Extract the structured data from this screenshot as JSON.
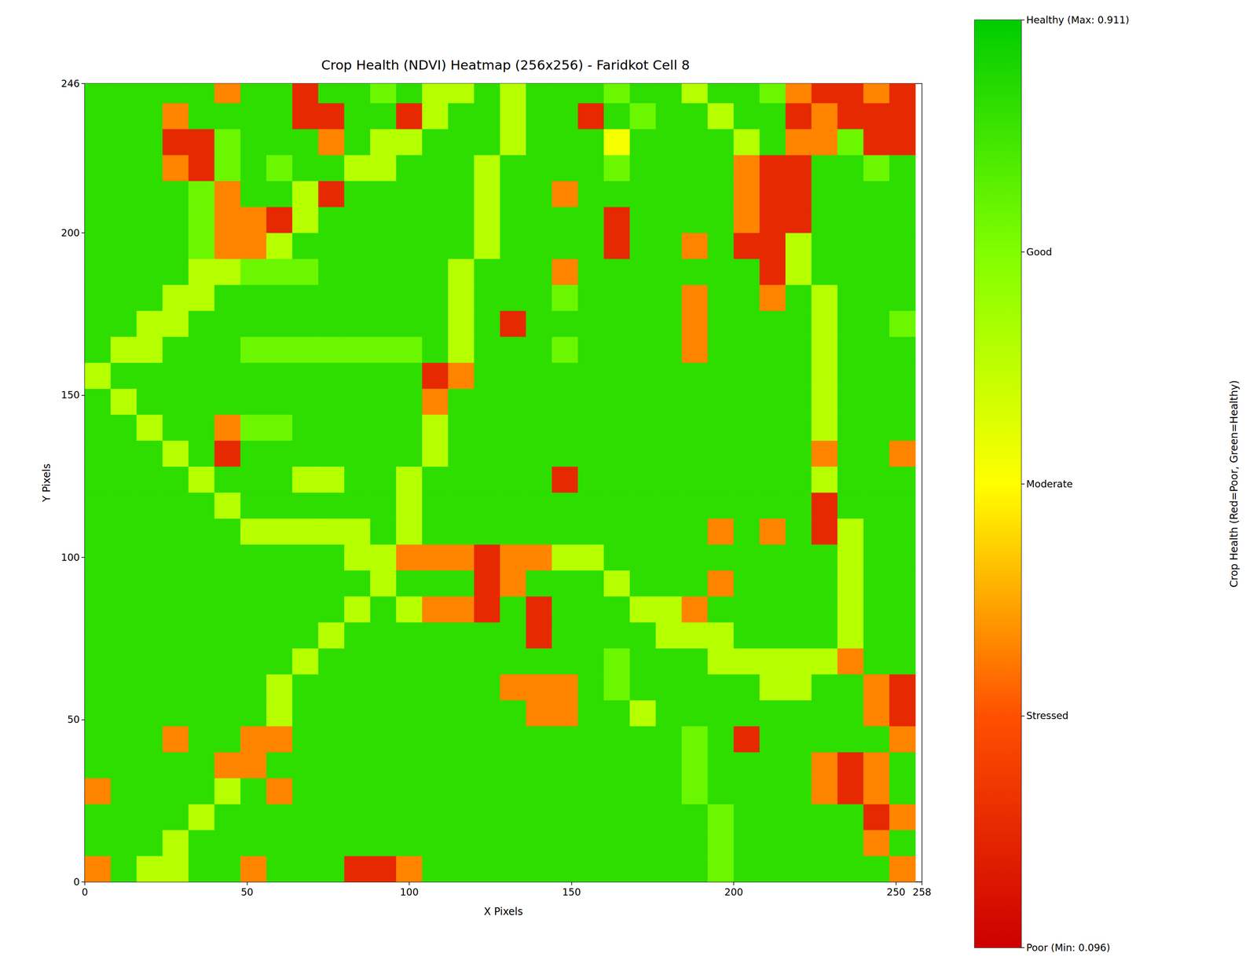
{
  "chart_data": {
    "type": "heatmap",
    "title": "Crop Health (NDVI) Heatmap (256x256) - Faridkot Cell 8",
    "x_label": "X Pixels",
    "y_label": "Y Pixels",
    "xlim": [
      0,
      258
    ],
    "ylim": [
      0,
      246
    ],
    "xticks": [
      0,
      50,
      100,
      150,
      200,
      250
    ],
    "yticks": [
      0,
      50,
      100,
      150,
      200
    ],
    "grid": false,
    "x": [
      4,
      12,
      20,
      28,
      36,
      44,
      52,
      60,
      68,
      76,
      84,
      92,
      100,
      108,
      116,
      124,
      132,
      140,
      148,
      156,
      164,
      172,
      180,
      188,
      196,
      204,
      212,
      220,
      228,
      236,
      244,
      252
    ],
    "y": [
      4,
      12,
      20,
      28,
      36,
      44,
      52,
      60,
      68,
      76,
      84,
      92,
      100,
      108,
      116,
      124,
      132,
      140,
      148,
      156,
      164,
      172,
      180,
      188,
      196,
      204,
      212,
      220,
      228,
      236,
      244
    ],
    "z": [
      [
        0.36,
        0.84,
        0.62,
        0.62,
        0.84,
        0.84,
        0.36,
        0.84,
        0.84,
        0.84,
        0.2,
        0.2,
        0.36,
        0.84,
        0.84,
        0.84,
        0.84,
        0.84,
        0.84,
        0.84,
        0.84,
        0.84,
        0.84,
        0.84,
        0.74,
        0.84,
        0.84,
        0.84,
        0.84,
        0.84,
        0.84,
        0.36
      ],
      [
        0.84,
        0.84,
        0.84,
        0.62,
        0.84,
        0.84,
        0.84,
        0.84,
        0.84,
        0.84,
        0.84,
        0.84,
        0.84,
        0.84,
        0.84,
        0.84,
        0.84,
        0.84,
        0.84,
        0.84,
        0.84,
        0.84,
        0.84,
        0.84,
        0.74,
        0.84,
        0.84,
        0.84,
        0.84,
        0.84,
        0.36,
        0.84
      ],
      [
        0.84,
        0.84,
        0.84,
        0.84,
        0.62,
        0.84,
        0.84,
        0.84,
        0.84,
        0.84,
        0.84,
        0.84,
        0.84,
        0.84,
        0.84,
        0.84,
        0.84,
        0.84,
        0.84,
        0.84,
        0.84,
        0.84,
        0.84,
        0.84,
        0.74,
        0.84,
        0.84,
        0.84,
        0.84,
        0.84,
        0.2,
        0.36
      ],
      [
        0.36,
        0.84,
        0.84,
        0.84,
        0.84,
        0.62,
        0.84,
        0.36,
        0.84,
        0.84,
        0.84,
        0.84,
        0.84,
        0.84,
        0.84,
        0.84,
        0.84,
        0.84,
        0.84,
        0.84,
        0.84,
        0.84,
        0.84,
        0.74,
        0.84,
        0.84,
        0.84,
        0.84,
        0.36,
        0.2,
        0.36,
        0.84
      ],
      [
        0.84,
        0.84,
        0.84,
        0.84,
        0.84,
        0.36,
        0.36,
        0.84,
        0.84,
        0.84,
        0.84,
        0.84,
        0.84,
        0.84,
        0.84,
        0.84,
        0.84,
        0.84,
        0.84,
        0.84,
        0.84,
        0.84,
        0.84,
        0.74,
        0.84,
        0.84,
        0.84,
        0.84,
        0.36,
        0.2,
        0.36,
        0.84
      ],
      [
        0.84,
        0.84,
        0.84,
        0.36,
        0.84,
        0.84,
        0.36,
        0.36,
        0.84,
        0.84,
        0.84,
        0.84,
        0.84,
        0.84,
        0.84,
        0.84,
        0.84,
        0.84,
        0.84,
        0.84,
        0.84,
        0.84,
        0.84,
        0.74,
        0.84,
        0.2,
        0.84,
        0.84,
        0.84,
        0.84,
        0.84,
        0.36
      ],
      [
        0.84,
        0.84,
        0.84,
        0.84,
        0.84,
        0.84,
        0.84,
        0.62,
        0.84,
        0.84,
        0.84,
        0.84,
        0.84,
        0.84,
        0.84,
        0.84,
        0.84,
        0.36,
        0.36,
        0.84,
        0.84,
        0.62,
        0.84,
        0.84,
        0.84,
        0.84,
        0.84,
        0.84,
        0.84,
        0.84,
        0.36,
        0.2
      ],
      [
        0.84,
        0.84,
        0.84,
        0.84,
        0.84,
        0.84,
        0.84,
        0.62,
        0.84,
        0.84,
        0.84,
        0.84,
        0.84,
        0.84,
        0.84,
        0.84,
        0.36,
        0.36,
        0.36,
        0.84,
        0.74,
        0.84,
        0.84,
        0.84,
        0.84,
        0.84,
        0.62,
        0.62,
        0.84,
        0.84,
        0.36,
        0.2
      ],
      [
        0.84,
        0.84,
        0.84,
        0.84,
        0.84,
        0.84,
        0.84,
        0.84,
        0.62,
        0.84,
        0.84,
        0.84,
        0.84,
        0.84,
        0.84,
        0.84,
        0.84,
        0.84,
        0.84,
        0.84,
        0.74,
        0.84,
        0.84,
        0.84,
        0.62,
        0.62,
        0.62,
        0.62,
        0.62,
        0.36,
        0.84,
        0.84
      ],
      [
        0.84,
        0.84,
        0.84,
        0.84,
        0.84,
        0.84,
        0.84,
        0.84,
        0.84,
        0.62,
        0.84,
        0.84,
        0.84,
        0.84,
        0.84,
        0.84,
        0.84,
        0.2,
        0.84,
        0.84,
        0.84,
        0.84,
        0.62,
        0.62,
        0.62,
        0.84,
        0.84,
        0.84,
        0.84,
        0.62,
        0.84,
        0.84
      ],
      [
        0.84,
        0.84,
        0.84,
        0.84,
        0.84,
        0.84,
        0.84,
        0.84,
        0.84,
        0.84,
        0.62,
        0.84,
        0.62,
        0.36,
        0.36,
        0.2,
        0.84,
        0.2,
        0.84,
        0.84,
        0.84,
        0.62,
        0.62,
        0.36,
        0.84,
        0.84,
        0.84,
        0.84,
        0.84,
        0.62,
        0.84,
        0.84
      ],
      [
        0.84,
        0.84,
        0.84,
        0.84,
        0.84,
        0.84,
        0.84,
        0.84,
        0.84,
        0.84,
        0.84,
        0.62,
        0.84,
        0.84,
        0.84,
        0.2,
        0.36,
        0.84,
        0.84,
        0.84,
        0.62,
        0.84,
        0.84,
        0.84,
        0.36,
        0.84,
        0.84,
        0.84,
        0.84,
        0.62,
        0.84,
        0.84
      ],
      [
        0.84,
        0.84,
        0.84,
        0.84,
        0.84,
        0.84,
        0.84,
        0.84,
        0.84,
        0.84,
        0.62,
        0.62,
        0.36,
        0.36,
        0.36,
        0.2,
        0.36,
        0.36,
        0.62,
        0.62,
        0.84,
        0.84,
        0.84,
        0.84,
        0.84,
        0.84,
        0.84,
        0.84,
        0.84,
        0.62,
        0.84,
        0.84
      ],
      [
        0.84,
        0.84,
        0.84,
        0.84,
        0.84,
        0.84,
        0.62,
        0.62,
        0.62,
        0.62,
        0.62,
        0.84,
        0.62,
        0.84,
        0.84,
        0.84,
        0.84,
        0.84,
        0.84,
        0.84,
        0.84,
        0.84,
        0.84,
        0.84,
        0.36,
        0.84,
        0.36,
        0.84,
        0.2,
        0.62,
        0.84,
        0.84
      ],
      [
        0.84,
        0.84,
        0.84,
        0.84,
        0.84,
        0.62,
        0.84,
        0.84,
        0.84,
        0.84,
        0.84,
        0.84,
        0.62,
        0.84,
        0.84,
        0.84,
        0.84,
        0.84,
        0.84,
        0.84,
        0.84,
        0.84,
        0.84,
        0.84,
        0.84,
        0.84,
        0.84,
        0.84,
        0.2,
        0.84,
        0.84,
        0.84
      ],
      [
        0.84,
        0.84,
        0.84,
        0.84,
        0.62,
        0.84,
        0.84,
        0.84,
        0.62,
        0.62,
        0.84,
        0.84,
        0.62,
        0.84,
        0.84,
        0.84,
        0.84,
        0.84,
        0.2,
        0.84,
        0.84,
        0.84,
        0.84,
        0.84,
        0.84,
        0.84,
        0.84,
        0.84,
        0.62,
        0.84,
        0.84,
        0.84
      ],
      [
        0.84,
        0.84,
        0.84,
        0.62,
        0.84,
        0.2,
        0.84,
        0.84,
        0.84,
        0.84,
        0.84,
        0.84,
        0.84,
        0.62,
        0.84,
        0.84,
        0.84,
        0.84,
        0.84,
        0.84,
        0.84,
        0.84,
        0.84,
        0.84,
        0.84,
        0.84,
        0.84,
        0.84,
        0.36,
        0.84,
        0.84,
        0.36
      ],
      [
        0.84,
        0.84,
        0.62,
        0.84,
        0.84,
        0.36,
        0.74,
        0.74,
        0.84,
        0.84,
        0.84,
        0.84,
        0.84,
        0.62,
        0.84,
        0.84,
        0.84,
        0.84,
        0.84,
        0.84,
        0.84,
        0.84,
        0.84,
        0.84,
        0.84,
        0.84,
        0.84,
        0.84,
        0.62,
        0.84,
        0.84,
        0.84
      ],
      [
        0.84,
        0.62,
        0.84,
        0.84,
        0.84,
        0.84,
        0.84,
        0.84,
        0.84,
        0.84,
        0.84,
        0.84,
        0.84,
        0.36,
        0.84,
        0.84,
        0.84,
        0.84,
        0.84,
        0.84,
        0.84,
        0.84,
        0.84,
        0.84,
        0.84,
        0.84,
        0.84,
        0.84,
        0.62,
        0.84,
        0.84,
        0.84
      ],
      [
        0.62,
        0.84,
        0.84,
        0.84,
        0.84,
        0.84,
        0.84,
        0.84,
        0.84,
        0.84,
        0.84,
        0.84,
        0.84,
        0.2,
        0.36,
        0.84,
        0.84,
        0.84,
        0.84,
        0.84,
        0.84,
        0.84,
        0.84,
        0.84,
        0.84,
        0.84,
        0.84,
        0.84,
        0.62,
        0.84,
        0.84,
        0.84
      ],
      [
        0.84,
        0.62,
        0.62,
        0.84,
        0.84,
        0.84,
        0.74,
        0.74,
        0.74,
        0.74,
        0.74,
        0.74,
        0.74,
        0.84,
        0.62,
        0.84,
        0.84,
        0.84,
        0.74,
        0.84,
        0.84,
        0.84,
        0.84,
        0.36,
        0.84,
        0.84,
        0.84,
        0.84,
        0.62,
        0.84,
        0.84,
        0.84
      ],
      [
        0.84,
        0.84,
        0.62,
        0.62,
        0.84,
        0.84,
        0.84,
        0.84,
        0.84,
        0.84,
        0.84,
        0.84,
        0.84,
        0.84,
        0.62,
        0.84,
        0.2,
        0.84,
        0.84,
        0.84,
        0.84,
        0.84,
        0.84,
        0.36,
        0.84,
        0.84,
        0.84,
        0.84,
        0.62,
        0.84,
        0.84,
        0.74
      ],
      [
        0.84,
        0.84,
        0.84,
        0.62,
        0.62,
        0.84,
        0.84,
        0.84,
        0.84,
        0.84,
        0.84,
        0.84,
        0.84,
        0.84,
        0.62,
        0.84,
        0.84,
        0.84,
        0.74,
        0.84,
        0.84,
        0.84,
        0.84,
        0.36,
        0.84,
        0.84,
        0.36,
        0.84,
        0.62,
        0.84,
        0.84,
        0.84
      ],
      [
        0.84,
        0.84,
        0.84,
        0.84,
        0.62,
        0.62,
        0.74,
        0.74,
        0.74,
        0.84,
        0.84,
        0.84,
        0.84,
        0.84,
        0.62,
        0.84,
        0.84,
        0.84,
        0.36,
        0.84,
        0.84,
        0.84,
        0.84,
        0.84,
        0.84,
        0.84,
        0.2,
        0.62,
        0.84,
        0.84,
        0.84,
        0.84
      ],
      [
        0.84,
        0.84,
        0.84,
        0.84,
        0.74,
        0.36,
        0.36,
        0.62,
        0.84,
        0.84,
        0.84,
        0.84,
        0.84,
        0.84,
        0.84,
        0.62,
        0.84,
        0.84,
        0.84,
        0.84,
        0.2,
        0.84,
        0.84,
        0.36,
        0.84,
        0.2,
        0.2,
        0.62,
        0.84,
        0.84,
        0.84,
        0.84
      ],
      [
        0.84,
        0.84,
        0.84,
        0.84,
        0.74,
        0.36,
        0.36,
        0.2,
        0.62,
        0.84,
        0.84,
        0.84,
        0.84,
        0.84,
        0.84,
        0.62,
        0.84,
        0.84,
        0.84,
        0.84,
        0.2,
        0.84,
        0.84,
        0.84,
        0.84,
        0.36,
        0.2,
        0.2,
        0.84,
        0.84,
        0.84,
        0.84
      ],
      [
        0.84,
        0.84,
        0.84,
        0.84,
        0.74,
        0.36,
        0.84,
        0.84,
        0.62,
        0.2,
        0.84,
        0.84,
        0.84,
        0.84,
        0.84,
        0.62,
        0.84,
        0.84,
        0.36,
        0.84,
        0.84,
        0.84,
        0.84,
        0.84,
        0.84,
        0.36,
        0.2,
        0.2,
        0.84,
        0.84,
        0.84,
        0.84
      ],
      [
        0.84,
        0.84,
        0.84,
        0.36,
        0.2,
        0.74,
        0.84,
        0.74,
        0.84,
        0.84,
        0.62,
        0.62,
        0.84,
        0.84,
        0.84,
        0.62,
        0.84,
        0.84,
        0.84,
        0.84,
        0.74,
        0.84,
        0.84,
        0.84,
        0.84,
        0.36,
        0.2,
        0.2,
        0.84,
        0.84,
        0.74,
        0.84
      ],
      [
        0.84,
        0.84,
        0.84,
        0.2,
        0.2,
        0.74,
        0.84,
        0.84,
        0.84,
        0.36,
        0.84,
        0.62,
        0.62,
        0.84,
        0.84,
        0.84,
        0.62,
        0.84,
        0.84,
        0.84,
        0.52,
        0.84,
        0.84,
        0.84,
        0.84,
        0.62,
        0.84,
        0.36,
        0.36,
        0.74,
        0.2,
        0.2
      ],
      [
        0.84,
        0.84,
        0.84,
        0.36,
        0.84,
        0.84,
        0.84,
        0.84,
        0.2,
        0.2,
        0.84,
        0.84,
        0.2,
        0.62,
        0.84,
        0.84,
        0.62,
        0.84,
        0.84,
        0.2,
        0.84,
        0.74,
        0.84,
        0.84,
        0.62,
        0.84,
        0.84,
        0.2,
        0.36,
        0.2,
        0.2,
        0.2
      ],
      [
        0.84,
        0.84,
        0.84,
        0.84,
        0.84,
        0.36,
        0.84,
        0.84,
        0.2,
        0.84,
        0.84,
        0.74,
        0.84,
        0.62,
        0.62,
        0.84,
        0.62,
        0.84,
        0.84,
        0.84,
        0.74,
        0.84,
        0.84,
        0.62,
        0.84,
        0.84,
        0.74,
        0.36,
        0.2,
        0.2,
        0.36,
        0.2
      ]
    ],
    "colorbar": {
      "label": "Crop Health (Red=Poor, Green=Healthy)",
      "range": [
        0.096,
        0.911
      ],
      "ticks": [
        {
          "value": 0.096,
          "label": "Poor (Min: 0.096)"
        },
        {
          "value": 0.29975,
          "label": "Stressed"
        },
        {
          "value": 0.5035,
          "label": "Moderate"
        },
        {
          "value": 0.70725,
          "label": "Good"
        },
        {
          "value": 0.911,
          "label": "Healthy (Max: 0.911)"
        }
      ],
      "colors": [
        "#cc0000",
        "#ff5000",
        "#ffff00",
        "#80ff00",
        "#00cc00"
      ]
    }
  }
}
